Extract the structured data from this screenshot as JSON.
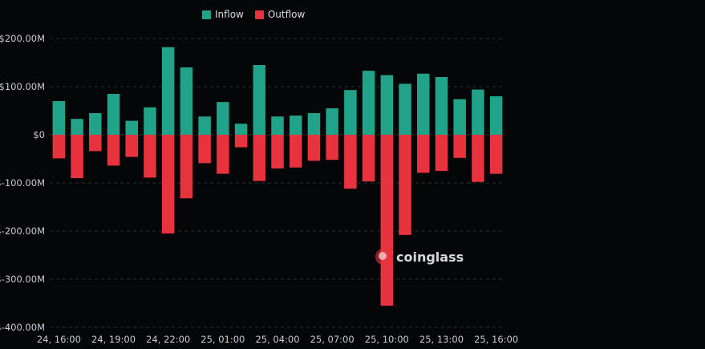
{
  "colors": {
    "inflow": "#21a38a",
    "outflow": "#e8333e",
    "background": "#050608",
    "grid": "#2a2d33",
    "tick": "#c8ccd2"
  },
  "legend": {
    "inflow_label": "Inflow",
    "outflow_label": "Outflow"
  },
  "watermark": {
    "text": "coinglass"
  },
  "chart_data": {
    "type": "bar",
    "title": "",
    "xlabel": "",
    "ylabel": "",
    "ylim": [
      -400,
      200
    ],
    "y_unit": "M USD",
    "yticks": [
      200,
      100,
      0,
      -100,
      -200,
      -300,
      -400
    ],
    "ytick_labels": [
      "$200.00M",
      "$100.00M",
      "$0",
      "$-100.00M",
      "$-200.00M",
      "$-300.00M",
      "$-400.00M"
    ],
    "categories": [
      "24, 16:00",
      "24, 17:00",
      "24, 18:00",
      "24, 19:00",
      "24, 20:00",
      "24, 21:00",
      "24, 22:00",
      "24, 23:00",
      "25, 00:00",
      "25, 01:00",
      "25, 02:00",
      "25, 03:00",
      "25, 04:00",
      "25, 05:00",
      "25, 06:00",
      "25, 07:00",
      "25, 08:00",
      "25, 09:00",
      "25, 10:00",
      "25, 11:00",
      "25, 12:00",
      "25, 13:00",
      "25, 14:00",
      "25, 15:00",
      "25, 16:00"
    ],
    "xtick_labels": [
      "24, 16:00",
      "",
      "",
      "24, 19:00",
      "",
      "",
      "24, 22:00",
      "",
      "",
      "25, 01:00",
      "",
      "",
      "25, 04:00",
      "",
      "",
      "25, 07:00",
      "",
      "",
      "25, 10:00",
      "",
      "",
      "25, 13:00",
      "",
      "",
      "25, 16:00"
    ],
    "grid": true,
    "legend_position": "top-center",
    "series": [
      {
        "name": "Inflow",
        "values": [
          70,
          33,
          45,
          85,
          29,
          57,
          182,
          140,
          38,
          68,
          23,
          145,
          38,
          40,
          45,
          55,
          93,
          133,
          124,
          106,
          127,
          120,
          74,
          94,
          80
        ]
      },
      {
        "name": "Outflow",
        "values": [
          -49,
          -90,
          -34,
          -64,
          -46,
          -89,
          -205,
          -132,
          -59,
          -81,
          -26,
          -96,
          -70,
          -68,
          -54,
          -52,
          -112,
          -97,
          -355,
          -208,
          -79,
          -75,
          -48,
          -98,
          -81
        ]
      }
    ]
  }
}
